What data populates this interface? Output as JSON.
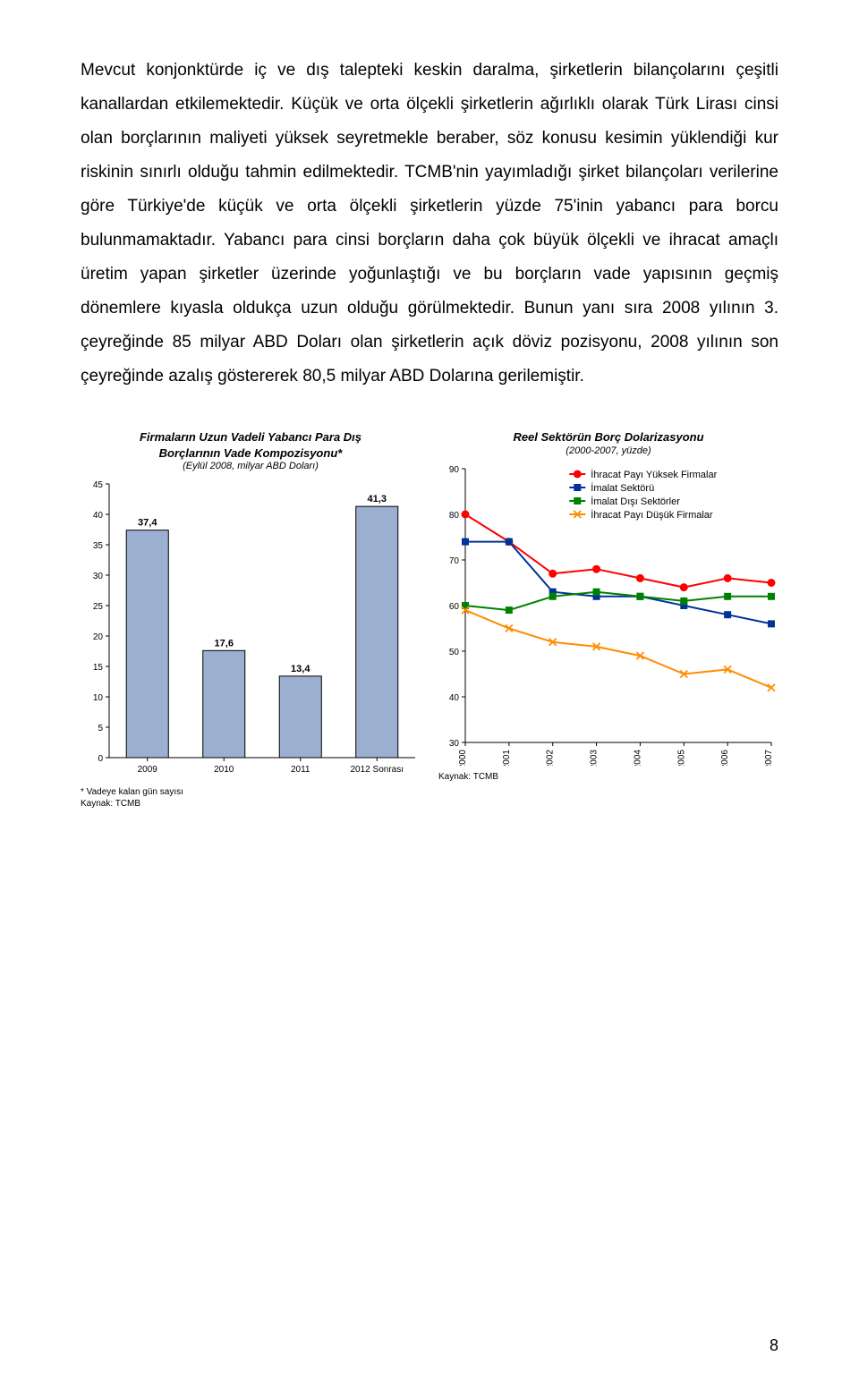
{
  "paragraph": "Mevcut konjonktürde iç ve dış talepteki keskin daralma, şirketlerin bilançolarını çeşitli kanallardan etkilemektedir. Küçük ve orta ölçekli şirketlerin ağırlıklı olarak Türk Lirası cinsi olan borçlarının maliyeti yüksek seyretmekle beraber, söz konusu kesimin yüklendiği kur riskinin sınırlı olduğu tahmin edilmektedir. TCMB'nin yayımladığı şirket bilançoları verilerine göre Türkiye'de küçük ve orta ölçekli şirketlerin yüzde 75'inin yabancı para borcu bulunmamaktadır. Yabancı para cinsi borçların daha çok büyük ölçekli ve ihracat amaçlı üretim yapan şirketler üzerinde yoğunlaştığı ve bu borçların vade yapısının geçmiş dönemlere kıyasla oldukça uzun olduğu görülmektedir. Bunun yanı sıra 2008 yılının 3. çeyreğinde 85 milyar ABD Doları olan şirketlerin açık döviz pozisyonu, 2008 yılının son çeyreğinde azalış göstererek 80,5 milyar ABD Dolarına gerilemiştir.",
  "bar_chart": {
    "title_l1": "Firmaların Uzun Vadeli Yabancı Para Dış",
    "title_l2": "Borçlarının Vade Kompozisyonu*",
    "subtitle": "(Eylül 2008, milyar ABD Doları)",
    "categories": [
      "2009",
      "2010",
      "2011",
      "2012 Sonrası"
    ],
    "values": [
      37.4,
      17.6,
      13.4,
      41.3
    ],
    "value_labels": [
      "37,4",
      "17,6",
      "13,4",
      "41,3"
    ],
    "ylim": [
      0,
      45
    ],
    "ytick_step": 5,
    "bar_color": "#9bb0d1",
    "bar_border": "#000000",
    "axis_color": "#000000",
    "label_fontsize": 10,
    "value_label_fontsize": 11,
    "footnote_l1": "* Vadeye kalan gün sayısı",
    "footnote_l2": "Kaynak: TCMB"
  },
  "line_chart": {
    "title": "Reel Sektörün Borç Dolarizasyonu",
    "subtitle": "(2000-2007, yüzde)",
    "x_categories": [
      "2000",
      "2001",
      "2002",
      "2003",
      "2004",
      "2005",
      "2006",
      "2007"
    ],
    "ylim": [
      30,
      90
    ],
    "ytick_step": 10,
    "series": [
      {
        "name": "İhracat Payı Yüksek Firmalar",
        "color": "#ff0000",
        "marker": "circle",
        "values": [
          80,
          74,
          67,
          68,
          66,
          64,
          66,
          65
        ]
      },
      {
        "name": "İmalat Sektörü",
        "color": "#003399",
        "marker": "square",
        "values": [
          74,
          74,
          63,
          62,
          62,
          60,
          58,
          56
        ]
      },
      {
        "name": "İmalat Dışı Sektörler",
        "color": "#008000",
        "marker": "square",
        "values": [
          60,
          59,
          62,
          63,
          62,
          61,
          62,
          62
        ]
      },
      {
        "name": "İhracat Payı Düşük Firmalar",
        "color": "#ff8c00",
        "marker": "x",
        "values": [
          59,
          55,
          52,
          51,
          49,
          45,
          46,
          42
        ]
      }
    ],
    "grid_color": "#e0e0e0",
    "axis_color": "#000000",
    "legend_fontsize": 11,
    "footnote": "Kaynak: TCMB"
  },
  "page_number": "8"
}
